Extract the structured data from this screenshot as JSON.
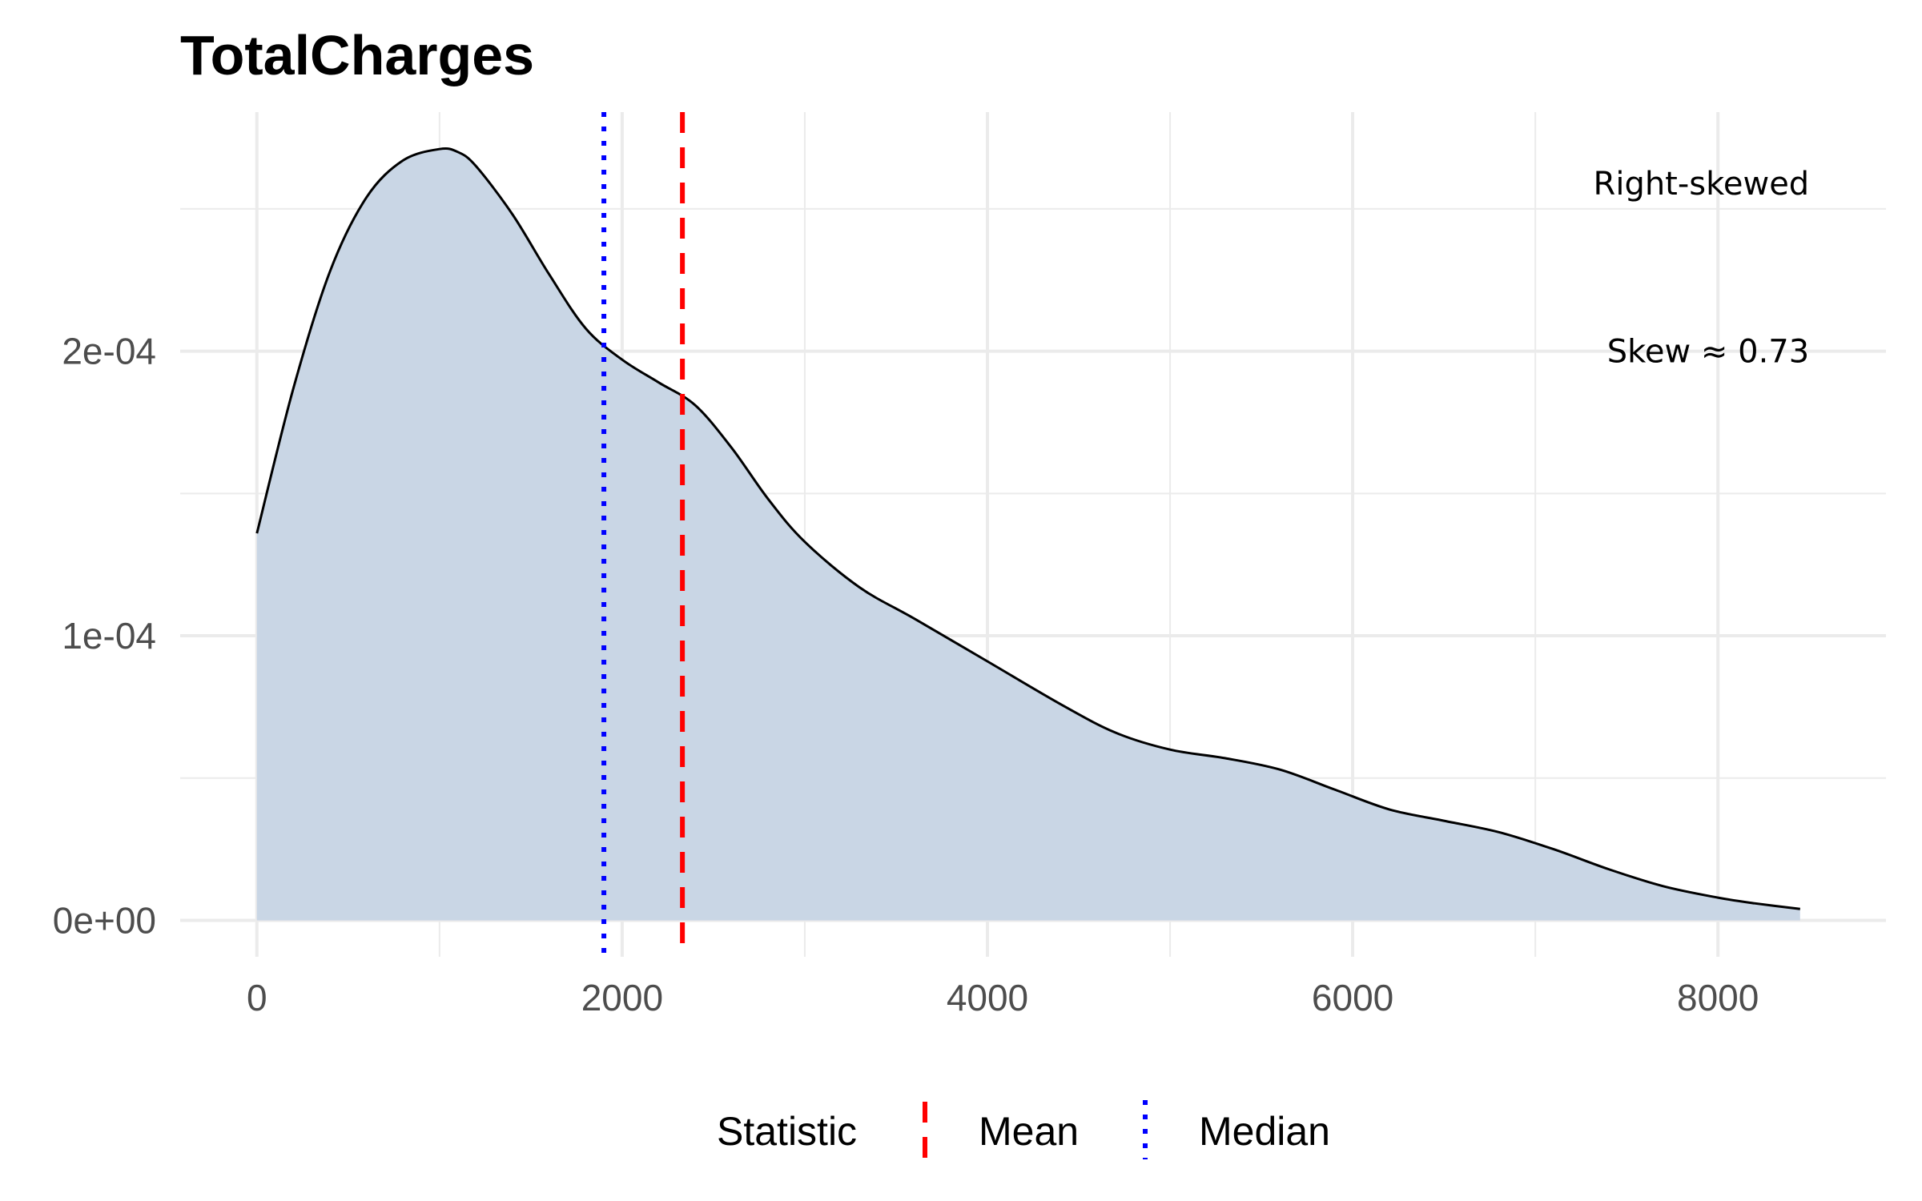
{
  "chart_data": {
    "type": "area",
    "title": "TotalCharges",
    "xlabel": "",
    "ylabel": "",
    "xlim": [
      -420,
      8920
    ],
    "ylim": [
      -1.28e-05,
      0.000284
    ],
    "x_ticks": [
      0,
      2000,
      4000,
      6000,
      8000
    ],
    "x_tick_labels": [
      "0",
      "2000",
      "4000",
      "6000",
      "8000"
    ],
    "y_ticks": [
      0,
      0.0001,
      0.0002
    ],
    "y_tick_labels": [
      "0e+00",
      "1e-04",
      "2e-04"
    ],
    "grid": true,
    "series": [
      {
        "fill_color": "#c9d6e5",
        "line_color": "#000000",
        "x": [
          0,
          200,
          400,
          600,
          800,
          1000,
          1100,
          1200,
          1400,
          1600,
          1800,
          2000,
          2200,
          2400,
          2600,
          2800,
          3000,
          3300,
          3600,
          4000,
          4400,
          4700,
          5000,
          5300,
          5600,
          5900,
          6200,
          6500,
          6800,
          7100,
          7400,
          7700,
          8000,
          8200,
          8450
        ],
        "y": [
          0.000136,
          0.000187,
          0.000228,
          0.000254,
          0.000267,
          0.000271,
          0.00027,
          0.000265,
          0.000248,
          0.000227,
          0.000208,
          0.000197,
          0.000189,
          0.000181,
          0.000166,
          0.000148,
          0.000133,
          0.000117,
          0.000106,
          9.1e-05,
          7.6e-05,
          6.6e-05,
          6e-05,
          5.7e-05,
          5.3e-05,
          4.6e-05,
          3.9e-05,
          3.5e-05,
          3.1e-05,
          2.5e-05,
          1.8e-05,
          1.2e-05,
          8e-06,
          6e-06,
          4e-06
        ]
      }
    ],
    "reference_lines": [
      {
        "name": "Mean",
        "x": 2330,
        "color": "#ff0000",
        "style": "dashed"
      },
      {
        "name": "Median",
        "x": 1900,
        "color": "#0000ff",
        "style": "dotted"
      }
    ],
    "annotations": [
      {
        "text": "Right-skewed",
        "x": 8500,
        "y": 0.000259
      },
      {
        "text": "Skew ≈ 0.73",
        "x": 8500,
        "y": 0.0002
      }
    ],
    "legend": {
      "title": "Statistic",
      "placement": "bottom",
      "entries": [
        "Mean",
        "Median"
      ]
    }
  }
}
